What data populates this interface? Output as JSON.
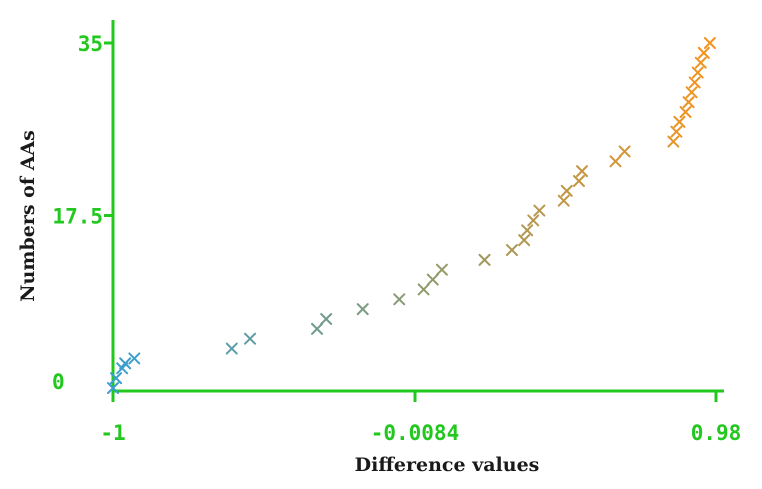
{
  "chart_data": {
    "type": "scatter",
    "xlabel": "Difference values",
    "ylabel": "Numbers of AAs",
    "xlim": [
      -1,
      0.98
    ],
    "ylim": [
      0,
      35
    ],
    "x_ticks": [
      "-1",
      "-0.0084",
      "0.98"
    ],
    "y_ticks": [
      "0",
      "17.5",
      "35"
    ],
    "grid": false,
    "marker": "x",
    "axis_color": "#22c81e",
    "color_scale": {
      "low": "#3a9fd0",
      "mid": "#8a9a6e",
      "high": "#f6931c"
    },
    "points": [
      {
        "x": -1.0,
        "y": 0
      },
      {
        "x": -0.99,
        "y": 1
      },
      {
        "x": -0.97,
        "y": 2
      },
      {
        "x": -0.96,
        "y": 2.5
      },
      {
        "x": -0.93,
        "y": 3
      },
      {
        "x": -0.61,
        "y": 4
      },
      {
        "x": -0.55,
        "y": 5
      },
      {
        "x": -0.33,
        "y": 6
      },
      {
        "x": -0.3,
        "y": 7
      },
      {
        "x": -0.18,
        "y": 8
      },
      {
        "x": -0.06,
        "y": 9
      },
      {
        "x": 0.02,
        "y": 10
      },
      {
        "x": 0.05,
        "y": 11
      },
      {
        "x": 0.08,
        "y": 12
      },
      {
        "x": 0.22,
        "y": 13
      },
      {
        "x": 0.31,
        "y": 14
      },
      {
        "x": 0.35,
        "y": 15
      },
      {
        "x": 0.36,
        "y": 16
      },
      {
        "x": 0.38,
        "y": 17
      },
      {
        "x": 0.4,
        "y": 18
      },
      {
        "x": 0.48,
        "y": 19
      },
      {
        "x": 0.49,
        "y": 20
      },
      {
        "x": 0.53,
        "y": 21
      },
      {
        "x": 0.54,
        "y": 22
      },
      {
        "x": 0.65,
        "y": 23
      },
      {
        "x": 0.68,
        "y": 24
      },
      {
        "x": 0.84,
        "y": 25
      },
      {
        "x": 0.85,
        "y": 26
      },
      {
        "x": 0.86,
        "y": 27
      },
      {
        "x": 0.88,
        "y": 28
      },
      {
        "x": 0.89,
        "y": 29
      },
      {
        "x": 0.9,
        "y": 30
      },
      {
        "x": 0.91,
        "y": 31
      },
      {
        "x": 0.92,
        "y": 32
      },
      {
        "x": 0.93,
        "y": 33
      },
      {
        "x": 0.94,
        "y": 34
      },
      {
        "x": 0.96,
        "y": 35
      }
    ]
  }
}
